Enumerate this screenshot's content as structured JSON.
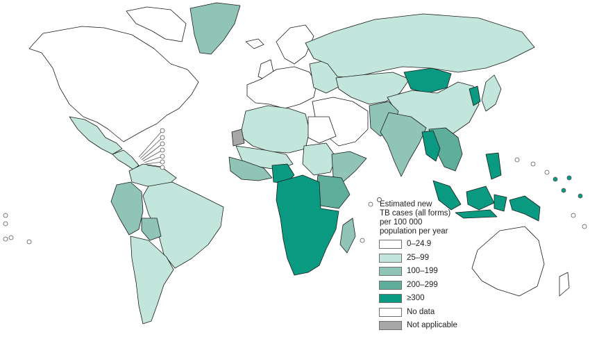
{
  "colors": {
    "outline": "#1a1a1a",
    "ocean": "#ffffff",
    "c0_24": "#ffffff",
    "c25_99": "#c3e6dc",
    "c100_199": "#8fc4b6",
    "c200_299": "#5fae9b",
    "c300": "#0a9a82",
    "no_data": "#ffffff",
    "not_applicable": "#a7a7a7"
  },
  "legend": {
    "title_lines": [
      "Estimated new",
      "TB cases (all forms)",
      "per 100 000",
      "population per year"
    ],
    "items": [
      {
        "label": "0–24.9",
        "color": "#ffffff"
      },
      {
        "label": "25–99",
        "color": "#c3e6dc"
      },
      {
        "label": "100–199",
        "color": "#8fc4b6"
      },
      {
        "label": "200–299",
        "color": "#5fae9b"
      },
      {
        "label": "≥300",
        "color": "#0a9a82"
      },
      {
        "label": "No data",
        "color": "#ffffff"
      },
      {
        "label": "Not applicable",
        "color": "#a7a7a7"
      }
    ]
  },
  "regions": [
    {
      "name": "north-america",
      "category": "c0_24"
    },
    {
      "name": "canadian-arctic-islands",
      "category": "c0_24"
    },
    {
      "name": "greenland",
      "category": "c100_199"
    },
    {
      "name": "mexico",
      "category": "c25_99"
    },
    {
      "name": "central-america",
      "category": "c25_99"
    },
    {
      "name": "south-america-north",
      "category": "c25_99"
    },
    {
      "name": "brazil",
      "category": "c25_99"
    },
    {
      "name": "andes",
      "category": "c100_199"
    },
    {
      "name": "bolivia",
      "category": "c100_199"
    },
    {
      "name": "southern-cone",
      "category": "c25_99"
    },
    {
      "name": "europe",
      "category": "c0_24"
    },
    {
      "name": "scandinavia",
      "category": "c0_24"
    },
    {
      "name": "iceland",
      "category": "c0_24"
    },
    {
      "name": "british-isles",
      "category": "c0_24"
    },
    {
      "name": "eastern-europe",
      "category": "c25_99"
    },
    {
      "name": "russia",
      "category": "c25_99"
    },
    {
      "name": "kazakhstan-central-asia",
      "category": "c25_99"
    },
    {
      "name": "mongolia",
      "category": "c300"
    },
    {
      "name": "china",
      "category": "c25_99"
    },
    {
      "name": "korea",
      "category": "c300"
    },
    {
      "name": "japan",
      "category": "c25_99"
    },
    {
      "name": "middle-east",
      "category": "c0_24"
    },
    {
      "name": "afghanistan-pakistan",
      "category": "c100_199"
    },
    {
      "name": "india",
      "category": "c100_199"
    },
    {
      "name": "southeast-asia-mainland",
      "category": "c200_299"
    },
    {
      "name": "myanmar-cambodia",
      "category": "c300"
    },
    {
      "name": "north-africa",
      "category": "c25_99"
    },
    {
      "name": "egypt",
      "category": "c0_24"
    },
    {
      "name": "western-sahara",
      "category": "not_applicable"
    },
    {
      "name": "west-africa-sahel",
      "category": "c25_99"
    },
    {
      "name": "west-africa-coast",
      "category": "c100_199"
    },
    {
      "name": "nigeria",
      "category": "c300"
    },
    {
      "name": "sudan",
      "category": "c25_99"
    },
    {
      "name": "horn-of-africa",
      "category": "c100_199"
    },
    {
      "name": "central-southern-africa",
      "category": "c300"
    },
    {
      "name": "east-africa",
      "category": "c200_299"
    },
    {
      "name": "madagascar",
      "category": "c100_199"
    },
    {
      "name": "indonesia-philippines",
      "category": "c300"
    },
    {
      "name": "papua",
      "category": "c300"
    },
    {
      "name": "australia",
      "category": "c0_24"
    },
    {
      "name": "new-zealand",
      "category": "c0_24"
    }
  ]
}
